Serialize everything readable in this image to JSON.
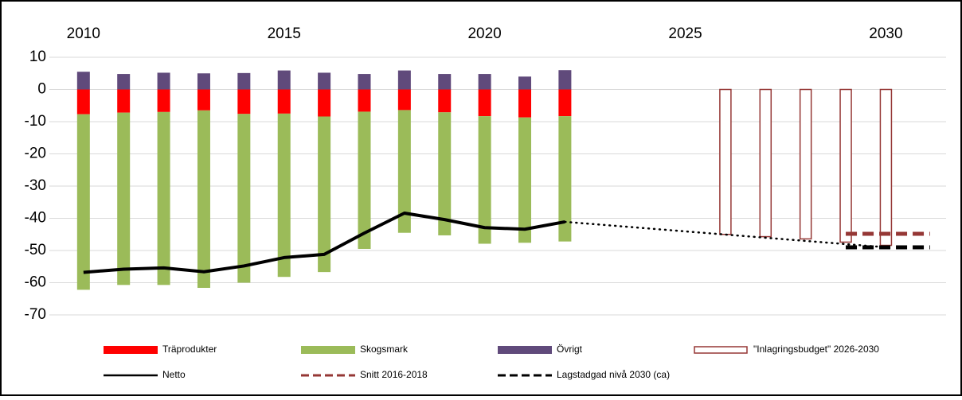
{
  "chart_data": {
    "type": "combo",
    "xlim": [
      2009.15,
      2031.5
    ],
    "xticks": [
      2010,
      2015,
      2020,
      2025,
      2030
    ],
    "ylim": [
      -70,
      10
    ],
    "yticks": [
      10,
      0,
      -10,
      -20,
      -30,
      -40,
      -50,
      -60,
      -70
    ],
    "grid": true,
    "series": [
      {
        "name": "Träprodukter",
        "type": "stacked-bar",
        "color": "#ff0000",
        "x": [
          2010,
          2011,
          2012,
          2013,
          2014,
          2015,
          2016,
          2017,
          2018,
          2019,
          2020,
          2021,
          2022
        ],
        "values": [
          -7.7,
          -7.2,
          -7.0,
          -6.5,
          -7.6,
          -7.5,
          -8.4,
          -6.9,
          -6.4,
          -7.1,
          -8.3,
          -8.7,
          -8.3
        ]
      },
      {
        "name": "Skogsmark",
        "type": "stacked-bar",
        "color": "#9bbb59",
        "x": [
          2010,
          2011,
          2012,
          2013,
          2014,
          2015,
          2016,
          2017,
          2018,
          2019,
          2020,
          2021,
          2022
        ],
        "values": [
          -54.5,
          -53.5,
          -53.7,
          -55.1,
          -52.4,
          -50.7,
          -48.3,
          -42.6,
          -38.1,
          -38.2,
          -39.6,
          -38.9,
          -38.9
        ]
      },
      {
        "name": "Övrigt",
        "type": "stacked-bar",
        "color": "#604a7b",
        "x": [
          2010,
          2011,
          2012,
          2013,
          2014,
          2015,
          2016,
          2017,
          2018,
          2019,
          2020,
          2021,
          2022
        ],
        "values": [
          5.5,
          4.8,
          5.2,
          5.0,
          5.1,
          5.9,
          5.2,
          4.8,
          5.9,
          4.8,
          4.8,
          4.0,
          6.0
        ]
      },
      {
        "name": "\"Inlagringsbudget\" 2026-2030",
        "type": "outline-bar",
        "color": "#953735",
        "x": [
          2026,
          2027,
          2028,
          2029,
          2030
        ],
        "values": [
          -45.0,
          -45.7,
          -46.4,
          -47.4,
          -48.4
        ]
      },
      {
        "name": "Netto",
        "type": "line",
        "dash": "solid",
        "color": "#000000",
        "x": [
          2010,
          2011,
          2012,
          2013,
          2014,
          2015,
          2016,
          2017,
          2018,
          2019,
          2020,
          2021,
          2022
        ],
        "values": [
          -56.8,
          -55.8,
          -55.4,
          -56.6,
          -54.8,
          -52.2,
          -51.2,
          -44.6,
          -38.4,
          -40.4,
          -42.9,
          -43.4,
          -41.1
        ]
      },
      {
        "name": "Snitt 2016-2018",
        "type": "line",
        "dash": "dashed",
        "color": "#953735",
        "x": [
          2029,
          2031.1
        ],
        "values": [
          -44.8,
          -44.8
        ]
      },
      {
        "name": "Lagstadgad nivå 2030 (ca)",
        "type": "line",
        "dash": "dashed",
        "color": "#000000",
        "x": [
          2029,
          2031.1
        ],
        "values": [
          -49,
          -49
        ]
      },
      {
        "type": "line",
        "dash": "dotted",
        "color": "#000000",
        "x": [
          2022,
          2030
        ],
        "values": [
          -41.1,
          -49
        ]
      }
    ]
  }
}
